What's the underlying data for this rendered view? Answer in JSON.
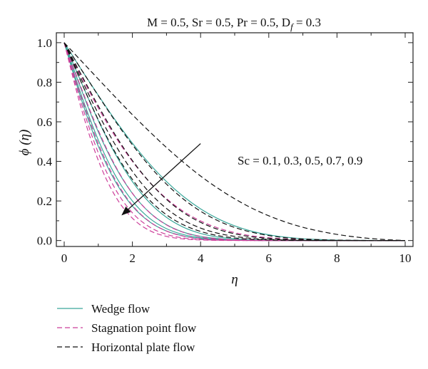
{
  "chart_data": {
    "type": "line",
    "title": "M = 0.5, Sr = 0.5, Pr = 0.5, D",
    "title_sub": "f",
    "title_end": " = 0.3",
    "xlabel": "η",
    "ylabel": "ϕ (η)",
    "xlim": [
      0,
      10
    ],
    "ylim": [
      -0.03,
      1.05
    ],
    "xticks": [
      0,
      2,
      4,
      6,
      8,
      10
    ],
    "xtick_labels": [
      "0",
      "2",
      "4",
      "6",
      "8",
      "10"
    ],
    "yticks": [
      0.0,
      0.2,
      0.4,
      0.6,
      0.8,
      1.0
    ],
    "ytick_labels": [
      "0.0",
      "0.2",
      "0.4",
      "0.6",
      "0.8",
      "1.0"
    ],
    "annotation": "Sc = 0.1, 0.3, 0.5, 0.7, 0.9",
    "arrow": {
      "from": [
        4.0,
        0.49
      ],
      "to": [
        1.7,
        0.13
      ]
    },
    "grid": false,
    "legend_position": "bottom",
    "sc_values": [
      0.1,
      0.3,
      0.5,
      0.7,
      0.9
    ],
    "series": [
      {
        "name": "Wedge flow",
        "color": "#3aa79a",
        "style": "solid",
        "curves": [
          {
            "sc": 0.1,
            "x": [
              0,
              0.5,
              1,
              1.5,
              2,
              2.5,
              3,
              3.5,
              4,
              4.5,
              5,
              5.5,
              6,
              6.5,
              7,
              7.5,
              8,
              8.5,
              9,
              9.5,
              10
            ],
            "y": [
              1,
              0.865,
              0.734,
              0.608,
              0.492,
              0.388,
              0.298,
              0.222,
              0.16,
              0.111,
              0.074,
              0.047,
              0.029,
              0.017,
              0.009,
              0.005,
              0.002,
              0.001,
              0.0005,
              0.0002,
              0
            ]
          },
          {
            "sc": 0.3,
            "x": [
              0,
              0.5,
              1,
              1.5,
              2,
              2.5,
              3,
              3.5,
              4,
              4.5,
              5,
              5.5,
              6,
              6.5,
              7,
              7.5,
              8,
              8.5,
              9,
              9.5,
              10
            ],
            "y": [
              1,
              0.8,
              0.607,
              0.437,
              0.298,
              0.192,
              0.117,
              0.067,
              0.036,
              0.018,
              0.009,
              0.004,
              0.002,
              0.001,
              0.0003,
              0.0001,
              0,
              0,
              0,
              0,
              0
            ]
          },
          {
            "sc": 0.5,
            "x": [
              0,
              0.5,
              1,
              1.5,
              2,
              2.5,
              3,
              3.5,
              4,
              4.5,
              5,
              5.5,
              6,
              6.5,
              7,
              7.5,
              8,
              8.5,
              9,
              9.5,
              10
            ],
            "y": [
              1,
              0.764,
              0.549,
              0.373,
              0.238,
              0.142,
              0.08,
              0.042,
              0.021,
              0.01,
              0.004,
              0.002,
              0.001,
              0.0002,
              0.0001,
              0,
              0,
              0,
              0,
              0,
              0
            ]
          },
          {
            "sc": 0.7,
            "x": [
              0,
              0.5,
              1,
              1.5,
              2,
              2.5,
              3,
              3.5,
              4,
              4.5,
              5,
              5.5,
              6,
              6.5,
              7,
              7.5,
              8,
              8.5,
              9,
              9.5,
              10
            ],
            "y": [
              1,
              0.736,
              0.508,
              0.329,
              0.2,
              0.113,
              0.06,
              0.03,
              0.014,
              0.006,
              0.002,
              0.001,
              0.0003,
              0.0001,
              0,
              0,
              0,
              0,
              0,
              0,
              0
            ]
          },
          {
            "sc": 0.9,
            "x": [
              0,
              0.5,
              1,
              1.5,
              2,
              2.5,
              3,
              3.5,
              4,
              4.5,
              5,
              5.5,
              6,
              6.5,
              7,
              7.5,
              8,
              8.5,
              9,
              9.5,
              10
            ],
            "y": [
              1,
              0.715,
              0.477,
              0.298,
              0.174,
              0.095,
              0.048,
              0.023,
              0.01,
              0.004,
              0.002,
              0.001,
              0.0002,
              0,
              0,
              0,
              0,
              0,
              0,
              0,
              0
            ]
          }
        ]
      },
      {
        "name": "Stagnation point flow",
        "color": "#cc3e9a",
        "style": "dashed",
        "curves": [
          {
            "sc": 0.1,
            "x": [
              0,
              0.5,
              1,
              1.5,
              2,
              2.5,
              3,
              3.5,
              4,
              4.5,
              5,
              5.5,
              6,
              6.5,
              7,
              7.5,
              8,
              8.5,
              9,
              9.5,
              10
            ],
            "y": [
              1,
              0.83,
              0.67,
              0.525,
              0.4,
              0.296,
              0.212,
              0.147,
              0.099,
              0.064,
              0.04,
              0.024,
              0.014,
              0.008,
              0.004,
              0.002,
              0.001,
              0.0005,
              0.0002,
              0.0001,
              0
            ]
          },
          {
            "sc": 0.3,
            "x": [
              0,
              0.5,
              1,
              1.5,
              2,
              2.5,
              3,
              3.5,
              4,
              4.5,
              5,
              5.5,
              6,
              6.5,
              7,
              7.5,
              8,
              8.5,
              9,
              9.5,
              10
            ],
            "y": [
              1,
              0.771,
              0.557,
              0.377,
              0.239,
              0.142,
              0.079,
              0.041,
              0.02,
              0.009,
              0.004,
              0.002,
              0.001,
              0.0002,
              0.0001,
              0,
              0,
              0,
              0,
              0,
              0
            ]
          },
          {
            "sc": 0.5,
            "x": [
              0,
              0.5,
              1,
              1.5,
              2,
              2.5,
              3,
              3.5,
              4,
              4.5,
              5,
              5.5,
              6,
              6.5,
              7,
              7.5,
              8,
              8.5,
              9,
              9.5,
              10
            ],
            "y": [
              1,
              0.728,
              0.49,
              0.307,
              0.178,
              0.096,
              0.048,
              0.022,
              0.01,
              0.004,
              0.002,
              0.001,
              0.0002,
              0,
              0,
              0,
              0,
              0,
              0,
              0,
              0
            ]
          },
          {
            "sc": 0.7,
            "x": [
              0,
              0.5,
              1,
              1.5,
              2,
              2.5,
              3,
              3.5,
              4,
              4.5,
              5,
              5.5,
              6,
              6.5,
              7,
              7.5,
              8,
              8.5,
              9,
              9.5,
              10
            ],
            "y": [
              1,
              0.695,
              0.443,
              0.26,
              0.14,
              0.069,
              0.031,
              0.013,
              0.005,
              0.002,
              0.001,
              0.0002,
              0,
              0,
              0,
              0,
              0,
              0,
              0,
              0,
              0
            ]
          },
          {
            "sc": 0.9,
            "x": [
              0,
              0.5,
              1,
              1.5,
              2,
              2.5,
              3,
              3.5,
              4,
              4.5,
              5,
              5.5,
              6,
              6.5,
              7,
              7.5,
              8,
              8.5,
              9,
              9.5,
              10
            ],
            "y": [
              1,
              0.668,
              0.405,
              0.224,
              0.113,
              0.051,
              0.021,
              0.008,
              0.003,
              0.001,
              0.0003,
              0.0001,
              0,
              0,
              0,
              0,
              0,
              0,
              0,
              0,
              0
            ]
          }
        ]
      },
      {
        "name": "Horizontal plate flow",
        "color": "#111111",
        "style": "dashed",
        "curves": [
          {
            "sc": 0.1,
            "x": [
              0,
              0.5,
              1,
              1.5,
              2,
              2.5,
              3,
              3.5,
              4,
              4.5,
              5,
              5.5,
              6,
              6.5,
              7,
              7.5,
              8,
              8.5,
              9,
              9.5,
              10
            ],
            "y": [
              1,
              0.908,
              0.816,
              0.725,
              0.636,
              0.551,
              0.47,
              0.395,
              0.326,
              0.265,
              0.211,
              0.164,
              0.125,
              0.093,
              0.067,
              0.047,
              0.031,
              0.019,
              0.01,
              0.004,
              0
            ]
          },
          {
            "sc": 0.3,
            "x": [
              0,
              0.5,
              1,
              1.5,
              2,
              2.5,
              3,
              3.5,
              4,
              4.5,
              5,
              5.5,
              6,
              6.5,
              7,
              7.5,
              8,
              8.5,
              9,
              9.5,
              10
            ],
            "y": [
              1,
              0.865,
              0.732,
              0.603,
              0.484,
              0.377,
              0.285,
              0.209,
              0.148,
              0.101,
              0.066,
              0.042,
              0.025,
              0.014,
              0.008,
              0.004,
              0.002,
              0.001,
              0.0004,
              0.0001,
              0
            ]
          },
          {
            "sc": 0.5,
            "x": [
              0,
              0.5,
              1,
              1.5,
              2,
              2.5,
              3,
              3.5,
              4,
              4.5,
              5,
              5.5,
              6,
              6.5,
              7,
              7.5,
              8,
              8.5,
              9,
              9.5,
              10
            ],
            "y": [
              1,
              0.838,
              0.68,
              0.533,
              0.404,
              0.296,
              0.208,
              0.141,
              0.092,
              0.057,
              0.034,
              0.019,
              0.011,
              0.006,
              0.003,
              0.001,
              0.0006,
              0.0002,
              0.0001,
              0,
              0
            ]
          },
          {
            "sc": 0.7,
            "x": [
              0,
              0.5,
              1,
              1.5,
              2,
              2.5,
              3,
              3.5,
              4,
              4.5,
              5,
              5.5,
              6,
              6.5,
              7,
              7.5,
              8,
              8.5,
              9,
              9.5,
              10
            ],
            "y": [
              1,
              0.817,
              0.641,
              0.483,
              0.35,
              0.243,
              0.162,
              0.103,
              0.063,
              0.037,
              0.021,
              0.011,
              0.006,
              0.003,
              0.001,
              0.0005,
              0.0002,
              0.0001,
              0,
              0,
              0
            ]
          },
          {
            "sc": 0.9,
            "x": [
              0,
              0.5,
              1,
              1.5,
              2,
              2.5,
              3,
              3.5,
              4,
              4.5,
              5,
              5.5,
              6,
              6.5,
              7,
              7.5,
              8,
              8.5,
              9,
              9.5,
              10
            ],
            "y": [
              1,
              0.8,
              0.61,
              0.444,
              0.309,
              0.205,
              0.13,
              0.079,
              0.046,
              0.025,
              0.013,
              0.006,
              0.003,
              0.001,
              0.0005,
              0.0002,
              0.0001,
              0,
              0,
              0,
              0
            ]
          }
        ]
      }
    ]
  }
}
